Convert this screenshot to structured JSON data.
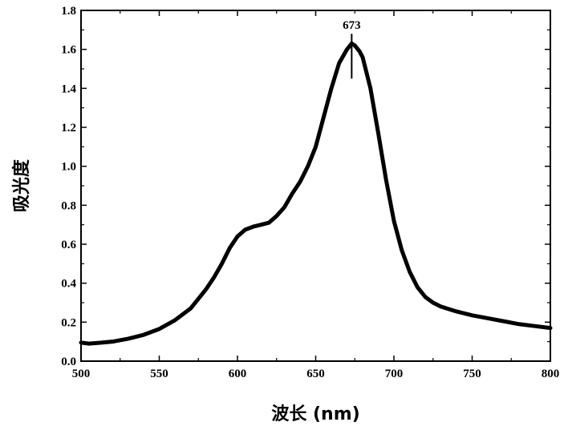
{
  "chart_data": {
    "type": "line",
    "title": "",
    "xlabel": "波长 (nm)",
    "ylabel": "吸光度",
    "xlim": [
      500,
      800
    ],
    "ylim": [
      0.0,
      1.8
    ],
    "xticks": [
      "500",
      "550",
      "600",
      "650",
      "700",
      "750",
      "800"
    ],
    "yticks": [
      "0.0",
      "0.2",
      "0.4",
      "0.6",
      "0.8",
      "1.0",
      "1.2",
      "1.4",
      "1.6",
      "1.8"
    ],
    "grid": false,
    "line_color": "#000000",
    "series": [
      {
        "x": [
          500,
          505,
          510,
          520,
          530,
          540,
          550,
          560,
          570,
          575,
          580,
          585,
          590,
          595,
          600,
          605,
          610,
          615,
          620,
          625,
          630,
          635,
          640,
          645,
          650,
          655,
          660,
          665,
          670,
          673,
          675,
          678,
          680,
          685,
          690,
          695,
          700,
          705,
          710,
          715,
          720,
          725,
          730,
          740,
          750,
          760,
          770,
          780,
          790,
          800
        ],
        "y": [
          0.095,
          0.09,
          0.093,
          0.1,
          0.115,
          0.135,
          0.165,
          0.21,
          0.27,
          0.32,
          0.37,
          0.43,
          0.5,
          0.58,
          0.64,
          0.675,
          0.69,
          0.7,
          0.71,
          0.745,
          0.79,
          0.86,
          0.92,
          1.0,
          1.1,
          1.25,
          1.4,
          1.53,
          1.6,
          1.63,
          1.62,
          1.59,
          1.56,
          1.4,
          1.17,
          0.93,
          0.72,
          0.57,
          0.46,
          0.38,
          0.33,
          0.3,
          0.28,
          0.255,
          0.235,
          0.22,
          0.205,
          0.19,
          0.18,
          0.17
        ]
      }
    ],
    "annotations": [
      {
        "text": "673",
        "x": 673,
        "y_top": 1.68,
        "y_bottom": 1.45
      }
    ]
  }
}
